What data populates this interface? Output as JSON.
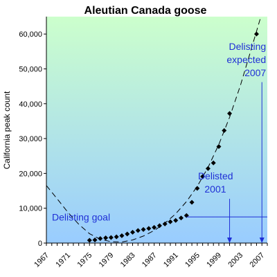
{
  "chart_data": {
    "type": "scatter",
    "title": "Aleutian Canada goose",
    "xlabel": "",
    "ylabel": "California peak count",
    "xlim": [
      1967,
      2008
    ],
    "ylim": [
      0,
      65000
    ],
    "x_ticks": [
      1967,
      1971,
      1975,
      1979,
      1983,
      1987,
      1991,
      1995,
      1999,
      2003,
      2007
    ],
    "y_ticks": [
      0,
      10000,
      20000,
      30000,
      40000,
      50000,
      60000
    ],
    "y_tick_labels": [
      "0",
      "10,000",
      "20,000",
      "30,000",
      "40,000",
      "50,000",
      "60,000"
    ],
    "grid": false,
    "legend": "none",
    "background_gradient": {
      "top": "#ccffcc",
      "bottom": "#99ccff"
    },
    "series": [
      {
        "style": "diamond-markers",
        "color": "#000000",
        "points": [
          {
            "x": 1975,
            "y": 790
          },
          {
            "x": 1976,
            "y": 900
          },
          {
            "x": 1977,
            "y": 1300
          },
          {
            "x": 1978,
            "y": 1500
          },
          {
            "x": 1979,
            "y": 1600
          },
          {
            "x": 1980,
            "y": 1800
          },
          {
            "x": 1981,
            "y": 2100
          },
          {
            "x": 1982,
            "y": 2600
          },
          {
            "x": 1983,
            "y": 3100
          },
          {
            "x": 1984,
            "y": 3600
          },
          {
            "x": 1985,
            "y": 3900
          },
          {
            "x": 1986,
            "y": 4200
          },
          {
            "x": 1987,
            "y": 4500
          },
          {
            "x": 1988,
            "y": 5000
          },
          {
            "x": 1989,
            "y": 5500
          },
          {
            "x": 1990,
            "y": 6100
          },
          {
            "x": 1991,
            "y": 6500
          },
          {
            "x": 1992,
            "y": 7200
          },
          {
            "x": 1993,
            "y": 7900
          },
          {
            "x": 1994,
            "y": 11700
          },
          {
            "x": 1995,
            "y": 15700
          },
          {
            "x": 1996,
            "y": 19100
          },
          {
            "x": 1997,
            "y": 21400
          },
          {
            "x": 1998,
            "y": 23000
          },
          {
            "x": 1999,
            "y": 27700
          },
          {
            "x": 2000,
            "y": 32300
          },
          {
            "x": 2001,
            "y": 37200
          },
          {
            "x": 2006,
            "y": 60000
          }
        ]
      },
      {
        "style": "dashed-trendline",
        "color": "#000000",
        "curve": [
          {
            "x": 1967,
            "y": 16500
          },
          {
            "x": 1969,
            "y": 12700
          },
          {
            "x": 1971,
            "y": 8800
          },
          {
            "x": 1973,
            "y": 5400
          },
          {
            "x": 1975,
            "y": 2700
          },
          {
            "x": 1977,
            "y": 1100
          },
          {
            "x": 1979,
            "y": 400
          },
          {
            "x": 1981,
            "y": 300
          },
          {
            "x": 1983,
            "y": 900
          },
          {
            "x": 1985,
            "y": 2000
          },
          {
            "x": 1987,
            "y": 3600
          },
          {
            "x": 1989,
            "y": 5700
          },
          {
            "x": 1991,
            "y": 8400
          },
          {
            "x": 1993,
            "y": 11900
          },
          {
            "x": 1995,
            "y": 16300
          },
          {
            "x": 1997,
            "y": 21700
          },
          {
            "x": 1999,
            "y": 28300
          },
          {
            "x": 2001,
            "y": 36100
          },
          {
            "x": 2003,
            "y": 45200
          },
          {
            "x": 2005,
            "y": 55600
          },
          {
            "x": 2006.8,
            "y": 65000
          }
        ]
      }
    ],
    "annotations": [
      {
        "id": "goal",
        "text": [
          "Delisting goal"
        ],
        "color": "#1f2fd6",
        "hline_y": 7500,
        "hline_from_x": 1993,
        "hline_to_x": 2008
      },
      {
        "id": "delisted",
        "text": [
          "Delisted",
          "2001"
        ],
        "color": "#1f2fd6",
        "arrow_x": 2001,
        "arrow_from_y": 12700,
        "arrow_to_y": 0
      },
      {
        "id": "expected",
        "text": [
          "Delisting",
          "expected",
          "2007"
        ],
        "color": "#1f2fd6",
        "arrow_x": 2007,
        "arrow_from_y": 46200,
        "arrow_to_y": 0
      }
    ]
  }
}
